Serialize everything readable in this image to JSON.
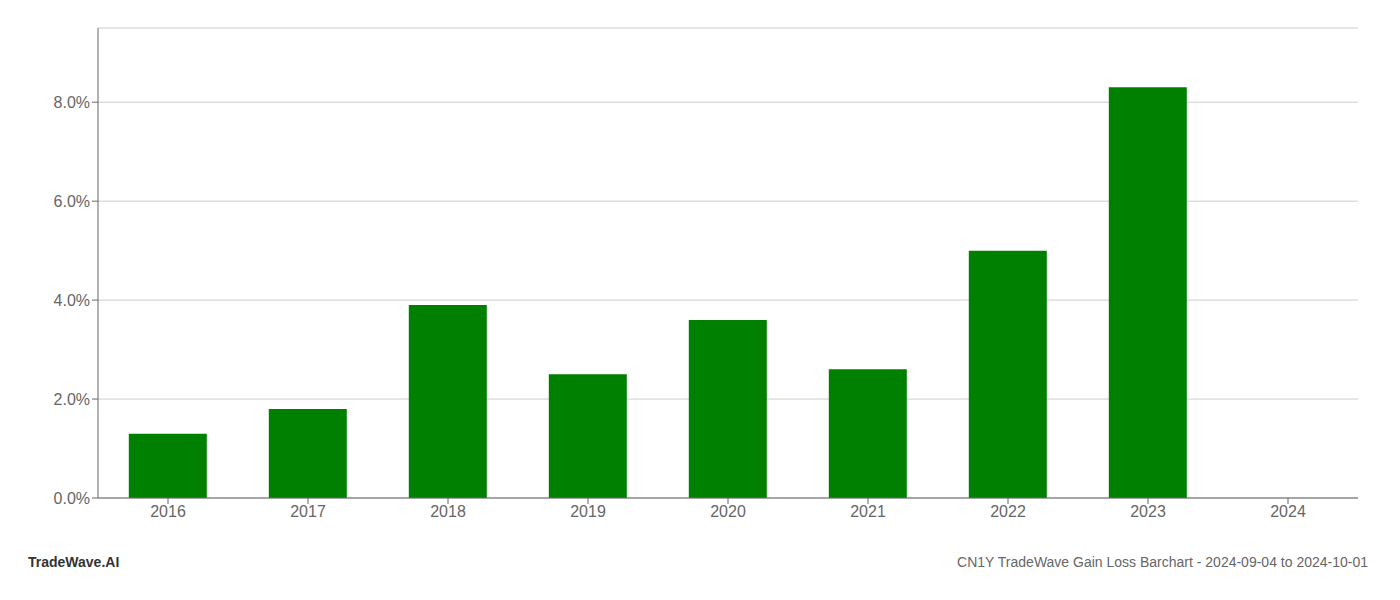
{
  "chart_data": {
    "type": "bar",
    "title": "CN1Y TradeWave Gain Loss Barchart - 2024-09-04 to 2024-10-01",
    "annotations": [
      "TradeWave.AI"
    ],
    "categories": [
      "2016",
      "2017",
      "2018",
      "2019",
      "2020",
      "2021",
      "2022",
      "2023",
      "2024"
    ],
    "values": [
      0.013,
      0.018,
      0.039,
      0.025,
      0.036,
      0.026,
      0.05,
      0.083,
      null
    ],
    "color": "#008000",
    "ylim": [
      0,
      0.095
    ],
    "yticks": [
      {
        "value": 0.0,
        "label": "0.0%"
      },
      {
        "value": 0.02,
        "label": "2.0%"
      },
      {
        "value": 0.04,
        "label": "4.0%"
      },
      {
        "value": 0.06,
        "label": "6.0%"
      },
      {
        "value": 0.08,
        "label": "8.0%"
      }
    ],
    "grid": true
  }
}
